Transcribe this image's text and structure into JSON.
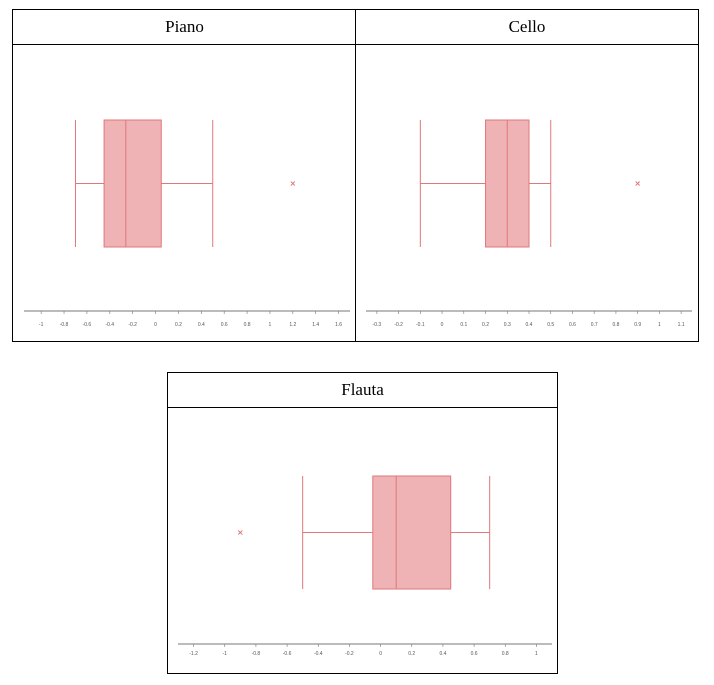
{
  "colors": {
    "box_fill": "#efb3b5",
    "box_stroke": "#e0777b",
    "axis": "#777777"
  },
  "chart_data": [
    {
      "type": "boxplot",
      "title": "Piano",
      "orientation": "horizontal",
      "xlim": [
        -1.15,
        1.7
      ],
      "ticks": [
        -1,
        -0.8,
        -0.6,
        -0.4,
        -0.2,
        0,
        0.2,
        0.4,
        0.6,
        0.8,
        1,
        1.2,
        1.4,
        1.6
      ],
      "tick_labels": [
        "-1",
        "-0.8",
        "-0.6",
        "-0.4",
        "-0.2",
        "0",
        "0.2",
        "0.4",
        "0.6",
        "0.8",
        "1",
        "1.2",
        "1.4",
        "1.6"
      ],
      "whisker_low": -0.7,
      "q1": -0.45,
      "median": -0.26,
      "q3": 0.05,
      "whisker_high": 0.5,
      "outliers": [
        1.2
      ]
    },
    {
      "type": "boxplot",
      "title": "Cello",
      "orientation": "horizontal",
      "xlim": [
        -0.35,
        1.15
      ],
      "ticks": [
        -0.3,
        -0.2,
        -0.1,
        0,
        0.1,
        0.2,
        0.3,
        0.4,
        0.5,
        0.6,
        0.7,
        0.8,
        0.9,
        1,
        1.1
      ],
      "tick_labels": [
        "-0.3",
        "-0.2",
        "-0.1",
        "0",
        "0.1",
        "0.2",
        "0.3",
        "0.4",
        "0.5",
        "0.6",
        "0.7",
        "0.8",
        "0.9",
        "1",
        "1.1"
      ],
      "whisker_low": -0.1,
      "q1": 0.2,
      "median": 0.3,
      "q3": 0.4,
      "whisker_high": 0.5,
      "outliers": [
        0.9
      ]
    },
    {
      "type": "boxplot",
      "title": "Flauta",
      "orientation": "horizontal",
      "xlim": [
        -1.3,
        1.1
      ],
      "ticks": [
        -1.2,
        -1,
        -0.8,
        -0.6,
        -0.4,
        -0.2,
        0,
        0.2,
        0.4,
        0.6,
        0.8,
        1
      ],
      "tick_labels": [
        "-1.2",
        "-1",
        "-0.8",
        "-0.6",
        "-0.4",
        "-0.2",
        "0",
        "0.2",
        "0.4",
        "0.6",
        "0.8",
        "1"
      ],
      "whisker_low": -0.5,
      "q1": -0.05,
      "median": 0.1,
      "q3": 0.45,
      "whisker_high": 0.7,
      "outliers": [
        -0.9
      ]
    }
  ]
}
